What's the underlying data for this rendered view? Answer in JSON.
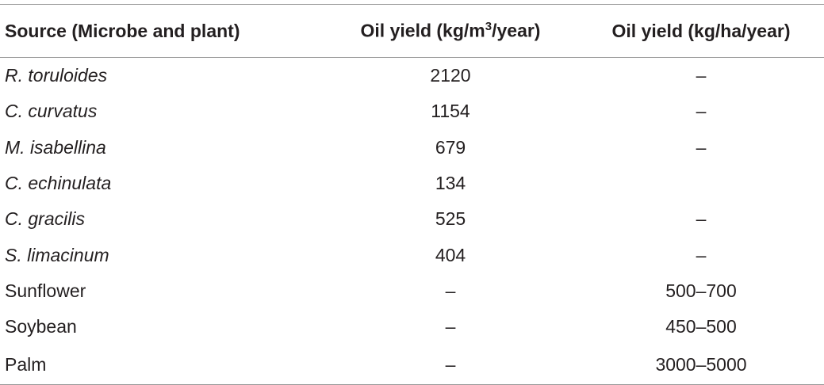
{
  "table": {
    "header": [
      "Source (Microbe and plant)",
      {
        "text": "Oil yield (kg/m",
        "sup": "3",
        "after": "/year)"
      },
      "Oil yield (kg/ha/year)"
    ],
    "rows": [
      [
        "R. toruloides",
        "2120",
        "–"
      ],
      [
        "C. curvatus",
        "1154",
        "–"
      ],
      [
        "M. isabellina",
        "679",
        "–"
      ],
      [
        "C. echinulata",
        "134",
        null
      ],
      [
        "C. gracilis",
        "525",
        "–"
      ],
      [
        "S. limacinum",
        "404",
        "–"
      ],
      [
        "Sunflower",
        "–",
        "500–700"
      ],
      [
        "Soybean",
        "–",
        "450–500"
      ],
      [
        "Palm",
        "–",
        "3000–5000"
      ]
    ]
  }
}
